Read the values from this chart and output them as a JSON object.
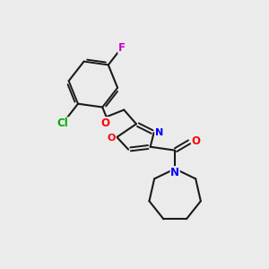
{
  "background_color": "#ebebeb",
  "bond_color": "#1a1a1a",
  "atom_colors": {
    "N": "#0000ff",
    "O": "#ff0000",
    "Cl": "#00aa00",
    "F": "#cc00cc"
  },
  "figsize": [
    3.0,
    3.0
  ],
  "dpi": 100
}
